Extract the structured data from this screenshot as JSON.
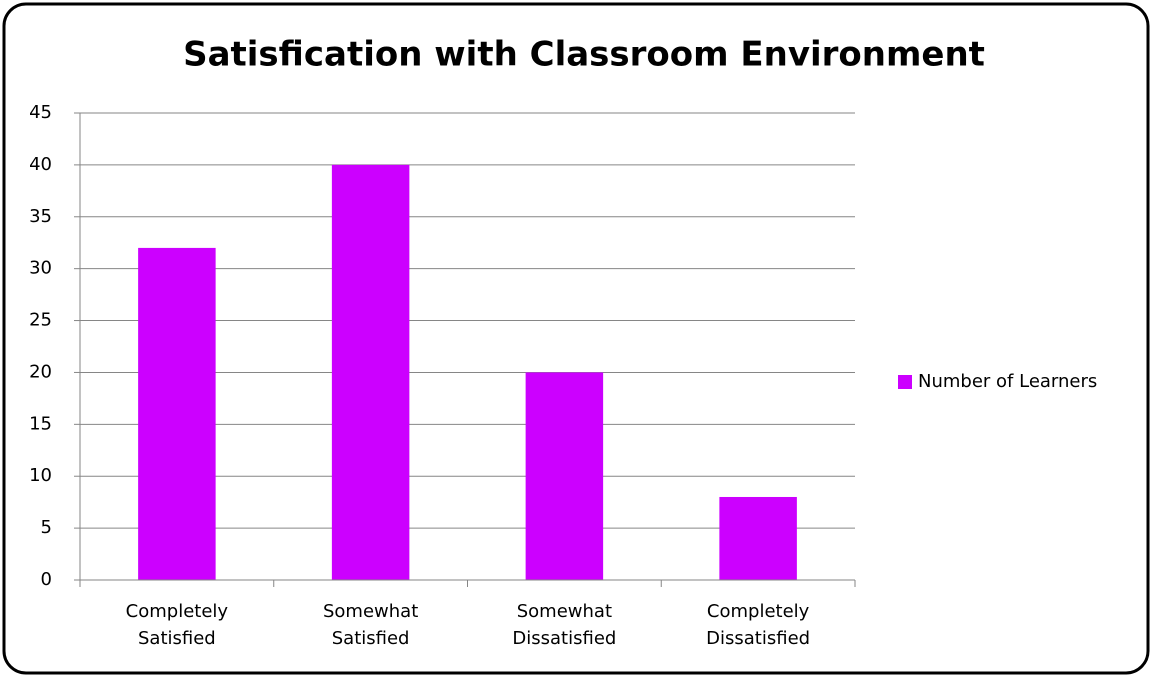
{
  "chart_data": {
    "type": "bar",
    "title": "Satisfication with Classroom Environment",
    "categories": [
      "Completely Satisfied",
      "Somewhat Satisfied",
      "Somewhat Dissatisfied",
      "Completely Dissatisfied"
    ],
    "series": [
      {
        "name": "Number of Learners",
        "color": "#cc00ff",
        "values": [
          32,
          40,
          20,
          8
        ]
      }
    ],
    "ylim": [
      0,
      45
    ],
    "yticks": [
      0,
      5,
      10,
      15,
      20,
      25,
      30,
      35,
      40,
      45
    ],
    "grid": true,
    "legend": "right"
  }
}
